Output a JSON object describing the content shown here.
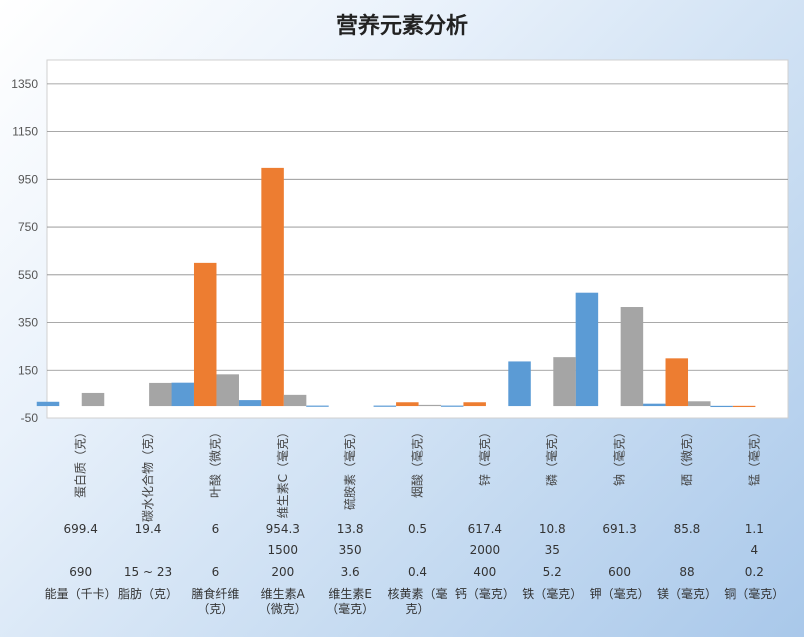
{
  "title": "营养元素分析",
  "colors": {
    "series1": "#5b9bd5",
    "series2": "#ed7d31",
    "series3": "#a5a5a5",
    "grid": "#8c8c8c",
    "plot_bg": "#ffffff"
  },
  "chart_data": {
    "type": "bar",
    "title": "营养元素分析",
    "grid": true,
    "ylim": [
      -50,
      1450
    ],
    "yticks": [
      -50,
      150,
      350,
      550,
      750,
      950,
      1150,
      1350
    ],
    "categories": [
      "蛋白质（克）",
      "碳水化合物（克）",
      "叶酸（微克）",
      "维生素C（毫克）",
      "硫胺素（毫克）",
      "烟酸（毫克）",
      "锌（毫克）",
      "磷（毫克）",
      "钠（毫克）",
      "硒（微克）",
      "锰（毫克）"
    ],
    "series": [
      {
        "values": [
          18,
          0,
          98,
          25,
          2,
          2,
          2,
          187,
          475,
          10,
          1
        ]
      },
      {
        "values": [
          0,
          0,
          600,
          998,
          0,
          16,
          16,
          0,
          0,
          200,
          1
        ]
      },
      {
        "values": [
          55,
          97,
          133,
          47,
          0,
          5,
          0,
          205,
          415,
          20,
          0
        ]
      }
    ]
  },
  "table": {
    "rows": [
      [
        "699.4",
        "19.4",
        "6",
        "954.3",
        "13.8",
        "0.5",
        "617.4",
        "10.8",
        "691.3",
        "85.8",
        "1.1"
      ],
      [
        "",
        "",
        "",
        "1500",
        "350",
        "",
        "2000",
        "35",
        "",
        "",
        "4"
      ],
      [
        "690",
        "15 ~ 23",
        "6",
        "200",
        "3.6",
        "0.4",
        "400",
        "5.2",
        "600",
        "88",
        "0.2"
      ]
    ],
    "labels": [
      [
        "能量（千卡）"
      ],
      [
        "脂肪（克）"
      ],
      [
        "膳食纤维",
        "（克）"
      ],
      [
        "维生素A",
        "（微克）"
      ],
      [
        "维生素E",
        "（毫克）"
      ],
      [
        "核黄素（毫",
        "克）"
      ],
      [
        "钙（毫克）"
      ],
      [
        "铁（毫克）"
      ],
      [
        "钾（毫克）"
      ],
      [
        "镁（毫克）"
      ],
      [
        "铜（毫克）"
      ]
    ]
  }
}
